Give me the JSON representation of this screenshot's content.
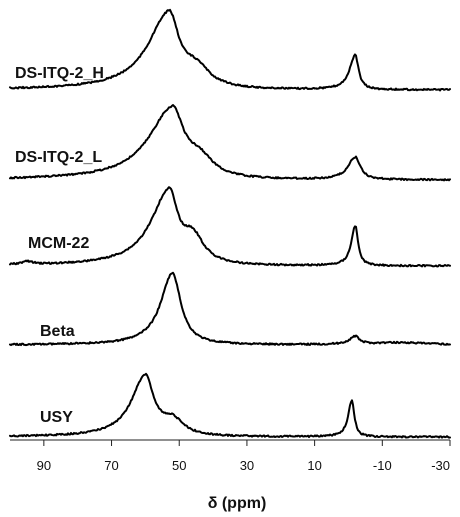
{
  "chart_data": {
    "type": "line",
    "title": "",
    "xlabel": "δ (ppm)",
    "ylabel": "",
    "xlim": [
      100,
      -30
    ],
    "x_reversed": true,
    "grid": false,
    "legend": "none",
    "xticks": [
      "90",
      "70",
      "50",
      "30",
      "10",
      "-10",
      "-30"
    ],
    "stacked": true,
    "series": [
      {
        "name": "DS-ITQ-2_H",
        "peaks": [
          {
            "center": 53,
            "height": 0.95,
            "width_low": 3.5,
            "width_high": 7.5
          },
          {
            "center": 45,
            "height": 0.25,
            "width_low": 5,
            "width_high": 5
          },
          {
            "center": -2,
            "height": 0.44,
            "width_low": 1.2,
            "width_high": 2.0
          }
        ]
      },
      {
        "name": "DS-ITQ-2_L",
        "peaks": [
          {
            "center": 52,
            "height": 0.92,
            "width_low": 4,
            "width_high": 8.5
          },
          {
            "center": 44,
            "height": 0.25,
            "width_low": 5,
            "width_high": 5
          },
          {
            "center": -2,
            "height": 0.3,
            "width_low": 1.8,
            "width_high": 2.5
          }
        ]
      },
      {
        "name": "MCM-22",
        "peaks": [
          {
            "center": 95,
            "height": 0.04,
            "width_low": 2,
            "width_high": 2
          },
          {
            "center": 53,
            "height": 0.93,
            "width_low": 3,
            "width_high": 6.5
          },
          {
            "center": 46,
            "height": 0.35,
            "width_low": 4,
            "width_high": 4
          },
          {
            "center": -2,
            "height": 0.52,
            "width_low": 1.0,
            "width_high": 1.4
          }
        ]
      },
      {
        "name": "Beta",
        "peaks": [
          {
            "center": 52,
            "height": 0.92,
            "width_low": 3.0,
            "width_high": 4.2
          },
          {
            "center": -2,
            "height": 0.1,
            "width_low": 1.5,
            "width_high": 2.0
          },
          {
            "center": -15,
            "height": 0.03,
            "width_low": 10,
            "width_high": 10
          }
        ]
      },
      {
        "name": "USY",
        "peaks": [
          {
            "center": 60,
            "height": 0.85,
            "width_low": 3.0,
            "width_high": 5.0
          },
          {
            "center": 52,
            "height": 0.22,
            "width_low": 4,
            "width_high": 4
          },
          {
            "center": -1,
            "height": 0.52,
            "width_low": 0.9,
            "width_high": 1.3
          }
        ]
      }
    ]
  }
}
